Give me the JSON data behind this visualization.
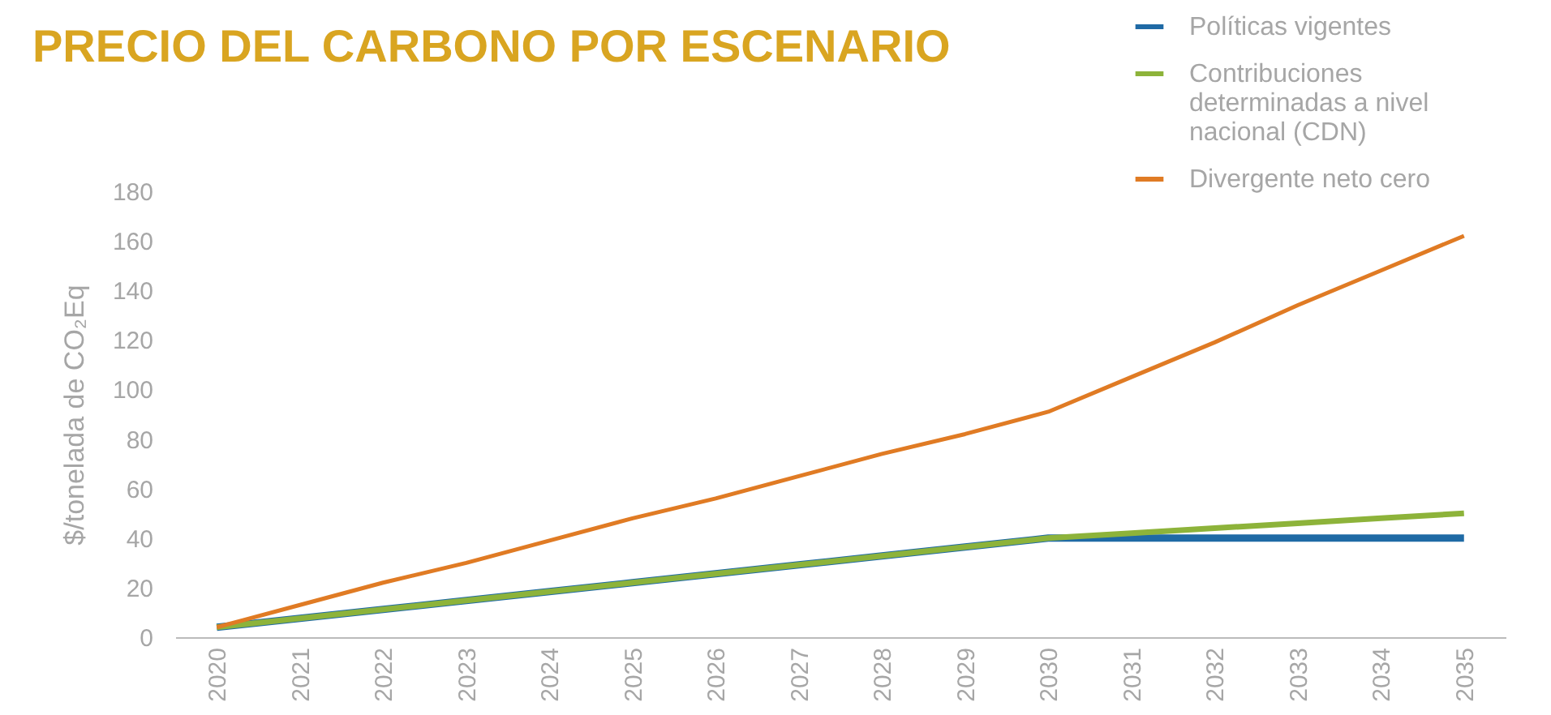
{
  "chart_data": {
    "type": "line",
    "title": "PRECIO DEL CARBONO POR ESCENARIO",
    "ylabel": "$/tonelada de CO₂Eq",
    "categories": [
      "2020",
      "2021",
      "2022",
      "2023",
      "2024",
      "2025",
      "2026",
      "2027",
      "2028",
      "2029",
      "2030",
      "2031",
      "2032",
      "2033",
      "2034",
      "2035"
    ],
    "series": [
      {
        "name": "Políticas vigentes",
        "color": "#1f6aa5",
        "values": [
          4,
          7.6,
          11.2,
          14.8,
          18.4,
          22,
          25.6,
          29.2,
          32.8,
          36.4,
          40,
          40,
          40,
          40,
          40,
          40
        ]
      },
      {
        "name": "Contribuciones determinadas a nivel nacional (CDN)",
        "color": "#8db33a",
        "values": [
          4,
          7.6,
          11.2,
          14.8,
          18.4,
          22,
          25.6,
          29.2,
          32.8,
          36.4,
          40,
          42,
          44,
          46,
          48,
          50
        ]
      },
      {
        "name": "Divergente neto cero",
        "color": "#e07b24",
        "values": [
          4,
          13,
          22,
          30,
          39,
          48,
          56,
          65,
          74,
          82,
          91,
          105,
          119,
          134,
          148,
          162
        ]
      }
    ],
    "ylim": [
      0,
      180
    ],
    "yticks": [
      0,
      20,
      40,
      60,
      80,
      100,
      120,
      140,
      160,
      180
    ],
    "grid": false,
    "legend": "top right",
    "line_style": "solid"
  }
}
